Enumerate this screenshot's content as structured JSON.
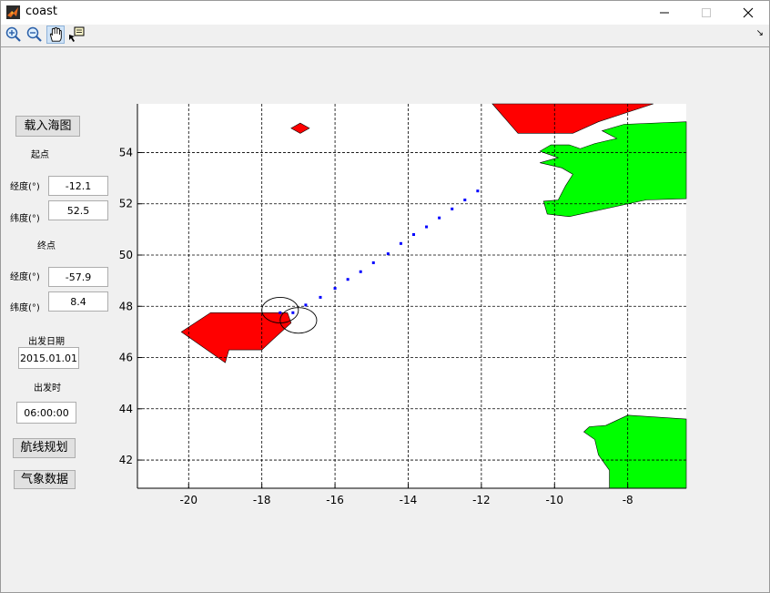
{
  "window": {
    "title": "coast",
    "minimize": "—",
    "maximize": "☐",
    "close": "✕"
  },
  "toolbar": {
    "buttons": [
      {
        "icon": "zoom-in-icon"
      },
      {
        "icon": "zoom-out-icon"
      },
      {
        "icon": "pan-hand-icon",
        "active": true
      },
      {
        "icon": "data-cursor-icon"
      }
    ],
    "corner": "↘"
  },
  "panel": {
    "load_chart_button": "载入海图",
    "start_heading": "起点",
    "start_lon_label": "经度(°)",
    "start_lon_value": "-12.1",
    "start_lat_label": "纬度(°)",
    "start_lat_value": "52.5",
    "end_heading": "终点",
    "end_lon_label": "经度(°)",
    "end_lon_value": "-57.9",
    "end_lat_label": "纬度(°)",
    "end_lat_value": "8.4",
    "date_label": "出发日期",
    "date_value": "2015.01.01",
    "time_label": "出发时",
    "time_value": "06:00:00",
    "route_button": "航线规划",
    "weather_button": "气象数据"
  },
  "chart_data": {
    "type": "scatter",
    "xlim": [
      -21.4,
      -6.4
    ],
    "ylim": [
      40.9,
      55.9
    ],
    "x_ticks": [
      -20,
      -18,
      -16,
      -14,
      -12,
      -10,
      -8
    ],
    "x_tick_labels": [
      "-20",
      "-18",
      "-16",
      "-14",
      "-12",
      "-10",
      "-8"
    ],
    "y_ticks": [
      42,
      44,
      46,
      48,
      50,
      52,
      54
    ],
    "y_tick_labels": [
      "42",
      "44",
      "46",
      "48",
      "50",
      "52",
      "54"
    ],
    "grid": true,
    "grid_style": "dashed",
    "route_points": [
      [
        -12.1,
        52.5
      ],
      [
        -12.45,
        52.15
      ],
      [
        -12.8,
        51.8
      ],
      [
        -13.15,
        51.45
      ],
      [
        -13.5,
        51.1
      ],
      [
        -13.85,
        50.8
      ],
      [
        -14.2,
        50.45
      ],
      [
        -14.55,
        50.05
      ],
      [
        -14.95,
        49.7
      ],
      [
        -15.3,
        49.35
      ],
      [
        -15.65,
        49.05
      ],
      [
        -16.0,
        48.7
      ],
      [
        -16.4,
        48.35
      ],
      [
        -16.8,
        48.05
      ],
      [
        -17.15,
        47.75
      ],
      [
        -17.5,
        47.75
      ]
    ],
    "route_color": "#0000ff",
    "circles": [
      {
        "cx": -17.5,
        "cy": 47.85,
        "r": 0.5
      },
      {
        "cx": -17.0,
        "cy": 47.45,
        "r": 0.5
      }
    ],
    "red_polygons": [
      [
        [
          -20.2,
          47.0
        ],
        [
          -19.4,
          47.75
        ],
        [
          -17.3,
          47.75
        ],
        [
          -17.2,
          47.35
        ],
        [
          -17.7,
          46.7
        ],
        [
          -18.0,
          46.3
        ],
        [
          -18.9,
          46.3
        ],
        [
          -19.0,
          45.8
        ]
      ],
      [
        [
          -17.2,
          54.95
        ],
        [
          -16.95,
          55.15
        ],
        [
          -16.7,
          54.95
        ],
        [
          -16.95,
          54.75
        ]
      ],
      [
        [
          -11.7,
          55.9
        ],
        [
          -7.3,
          55.9
        ],
        [
          -8.8,
          55.2
        ],
        [
          -9.5,
          54.75
        ],
        [
          -11.0,
          54.75
        ]
      ]
    ],
    "green_polygons": [
      [
        [
          -8.1,
          55.1
        ],
        [
          -6.4,
          55.2
        ],
        [
          -6.4,
          52.2
        ],
        [
          -7.5,
          52.15
        ],
        [
          -9.6,
          51.5
        ],
        [
          -10.2,
          51.6
        ],
        [
          -10.3,
          52.1
        ],
        [
          -9.9,
          52.15
        ],
        [
          -9.7,
          52.7
        ],
        [
          -9.5,
          53.15
        ],
        [
          -9.8,
          53.4
        ],
        [
          -10.4,
          53.6
        ],
        [
          -9.9,
          53.8
        ],
        [
          -10.4,
          54.05
        ],
        [
          -10.1,
          54.3
        ],
        [
          -9.6,
          54.3
        ],
        [
          -9.3,
          54.15
        ],
        [
          -8.9,
          54.35
        ],
        [
          -8.3,
          54.55
        ],
        [
          -8.7,
          54.85
        ]
      ],
      [
        [
          -8.6,
          43.35
        ],
        [
          -8.0,
          43.75
        ],
        [
          -6.4,
          43.6
        ],
        [
          -6.4,
          40.9
        ],
        [
          -8.5,
          40.9
        ],
        [
          -8.5,
          41.6
        ],
        [
          -8.8,
          42.2
        ],
        [
          -8.9,
          42.8
        ],
        [
          -9.2,
          43.1
        ],
        [
          -9.05,
          43.3
        ]
      ]
    ],
    "land_colors": {
      "red": "#ff0000",
      "green": "#00ff00"
    }
  }
}
